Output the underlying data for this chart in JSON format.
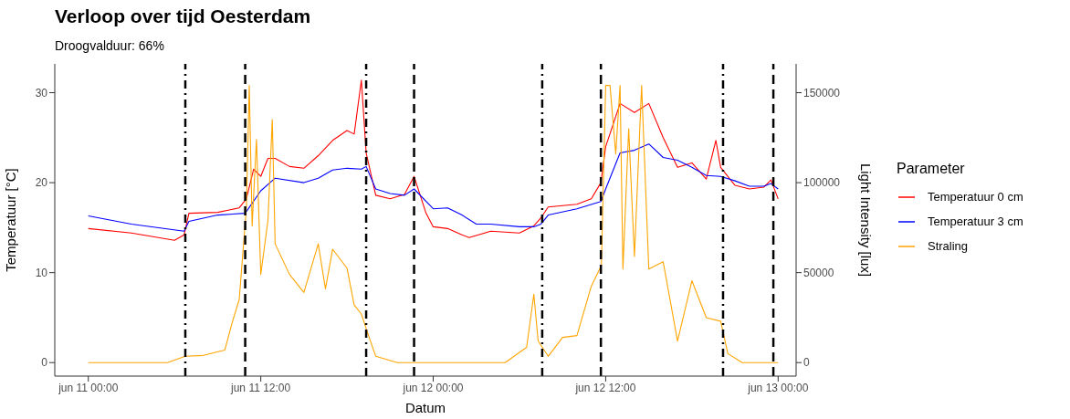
{
  "chart_data": {
    "type": "line",
    "title": "Verloop over tijd Oesterdam",
    "subtitle": "Droogvalduur: 66%",
    "xlabel": "Datum",
    "ylabel": "Temperatuur [°C]",
    "y2label": "Light Intensity [lux]",
    "legend_title": "Parameter",
    "legend": "right",
    "grid": false,
    "xlim": [
      "--06-10T21:40",
      "--06-13T01:15"
    ],
    "xticks": [
      {
        "value": "--06-11T00:00",
        "label": "jun 11 00:00"
      },
      {
        "value": "--06-11T12:00",
        "label": "jun 11 12:00"
      },
      {
        "value": "--06-12T00:00",
        "label": "jun 12 00:00"
      },
      {
        "value": "--06-12T12:00",
        "label": "jun 12 12:00"
      },
      {
        "value": "--06-13T00:00",
        "label": "jun 13 00:00"
      }
    ],
    "ylim": [
      -1.5,
      33.2
    ],
    "yticks": [
      0,
      10,
      20,
      30
    ],
    "y2lim": [
      -7500,
      166000
    ],
    "y2ticks": [
      0,
      50000,
      100000,
      150000
    ],
    "series": [
      {
        "name": "Temperatuur 0 cm",
        "color": "#ff0000",
        "x": [
          "--06-11T00:00",
          "--06-11T03:00",
          "--06-11T06:00",
          "--06-11T06:40",
          "--06-11T07:00",
          "--06-11T09:00",
          "--06-11T10:30",
          "--06-11T11:00",
          "--06-11T11:30",
          "--06-11T12:00",
          "--06-11T12:30",
          "--06-11T13:00",
          "--06-11T14:00",
          "--06-11T15:00",
          "--06-11T16:00",
          "--06-11T17:00",
          "--06-11T18:00",
          "--06-11T18:30",
          "--06-11T19:00",
          "--06-11T19:20",
          "--06-11T20:00",
          "--06-11T21:00",
          "--06-11T22:00",
          "--06-11T22:40",
          "--06-11T23:30",
          "--06-12T00:00",
          "--06-12T01:00",
          "--06-12T02:00",
          "--06-12T02:30",
          "--06-12T04:00",
          "--06-12T06:00",
          "--06-12T07:00",
          "--06-12T07:30",
          "--06-12T08:00",
          "--06-12T10:00",
          "--06-12T11:00",
          "--06-12T11:40",
          "--06-12T12:00",
          "--06-12T13:00",
          "--06-12T14:00",
          "--06-12T15:00",
          "--06-12T16:00",
          "--06-12T17:00",
          "--06-12T18:00",
          "--06-12T19:00",
          "--06-12T19:40",
          "--06-12T20:00",
          "--06-12T21:00",
          "--06-12T22:00",
          "--06-12T23:00",
          "--06-12T23:30",
          "--06-13T00:00"
        ],
        "values": [
          14.9,
          14.4,
          13.6,
          14.2,
          16.6,
          16.7,
          17.2,
          18.2,
          21.5,
          20.7,
          22.7,
          22.7,
          21.8,
          21.6,
          23,
          24.7,
          25.8,
          25.4,
          31.4,
          23.3,
          18.6,
          18.2,
          18.7,
          20.7,
          16.6,
          15.1,
          14.9,
          14.2,
          13.9,
          14.6,
          14.4,
          15.2,
          16.1,
          17.3,
          17.6,
          18.2,
          20,
          24,
          28.8,
          27.8,
          28.8,
          25,
          21.7,
          22.2,
          20.4,
          24.7,
          21.7,
          19.7,
          19.3,
          19.5,
          20.3,
          18.2
        ]
      },
      {
        "name": "Temperatuur 3 cm",
        "color": "#0000ff",
        "x": [
          "--06-11T00:00",
          "--06-11T03:00",
          "--06-11T06:40",
          "--06-11T07:00",
          "--06-11T09:00",
          "--06-11T10:55",
          "--06-11T12:00",
          "--06-11T13:00",
          "--06-11T15:00",
          "--06-11T16:00",
          "--06-11T17:00",
          "--06-11T18:00",
          "--06-11T19:00",
          "--06-11T19:20",
          "--06-11T20:00",
          "--06-11T21:00",
          "--06-11T22:00",
          "--06-11T22:40",
          "--06-12T00:00",
          "--06-12T01:00",
          "--06-12T02:00",
          "--06-12T03:00",
          "--06-12T04:00",
          "--06-12T06:00",
          "--06-12T07:00",
          "--06-12T07:30",
          "--06-12T08:00",
          "--06-12T10:00",
          "--06-12T11:40",
          "--06-12T12:00",
          "--06-12T13:00",
          "--06-12T14:00",
          "--06-12T15:00",
          "--06-12T16:00",
          "--06-12T17:00",
          "--06-12T18:00",
          "--06-12T19:00",
          "--06-12T20:00",
          "--06-12T21:00",
          "--06-12T22:00",
          "--06-12T23:00",
          "--06-12T23:30",
          "--06-13T00:00"
        ],
        "values": [
          16.3,
          15.4,
          14.6,
          15.7,
          16.4,
          16.6,
          19.1,
          20.5,
          20,
          20.5,
          21.4,
          21.6,
          21.5,
          21.8,
          19.3,
          18.8,
          18.6,
          19.3,
          17.1,
          17.2,
          16.4,
          15.4,
          15.4,
          15.1,
          15.1,
          15.4,
          16.4,
          17.1,
          17.9,
          19.3,
          23.3,
          23.6,
          24.3,
          22.8,
          22.5,
          21.7,
          20.8,
          20.7,
          20.2,
          19.6,
          19.6,
          19.9,
          19.3
        ]
      },
      {
        "name": "Straling",
        "color": "#ffa500",
        "axis": "y2",
        "x": [
          "--06-11T00:00",
          "--06-11T05:30",
          "--06-11T06:45",
          "--06-11T08:00",
          "--06-11T09:30",
          "--06-11T10:00",
          "--06-11T10:30",
          "--06-11T11:00",
          "--06-11T11:12",
          "--06-11T11:24",
          "--06-11T11:42",
          "--06-11T12:00",
          "--06-11T12:30",
          "--06-11T12:48",
          "--06-11T13:00",
          "--06-11T14:00",
          "--06-11T15:00",
          "--06-11T16:00",
          "--06-11T16:30",
          "--06-11T17:00",
          "--06-11T18:00",
          "--06-11T18:30",
          "--06-11T19:00",
          "--06-11T19:30",
          "--06-11T20:00",
          "--06-11T21:30",
          "--06-12T05:00",
          "--06-12T06:30",
          "--06-12T07:00",
          "--06-12T07:18",
          "--06-12T08:00",
          "--06-12T09:00",
          "--06-12T10:00",
          "--06-12T11:00",
          "--06-12T11:42",
          "--06-12T12:00",
          "--06-12T12:18",
          "--06-12T12:42",
          "--06-12T13:00",
          "--06-12T13:12",
          "--06-12T13:36",
          "--06-12T14:00",
          "--06-12T14:30",
          "--06-12T15:00",
          "--06-12T16:00",
          "--06-12T17:00",
          "--06-12T18:00",
          "--06-12T19:00",
          "--06-12T20:00",
          "--06-12T20:30",
          "--06-12T21:30",
          "--06-13T00:00"
        ],
        "values": [
          0,
          0,
          3500,
          4000,
          7000,
          22000,
          35000,
          86000,
          154000,
          76000,
          124000,
          49000,
          79000,
          135000,
          66000,
          49000,
          39000,
          66000,
          41000,
          63000,
          52500,
          32000,
          27000,
          15000,
          3500,
          0,
          0,
          8500,
          38000,
          12000,
          3500,
          14000,
          15000,
          42500,
          54000,
          154000,
          154000,
          116000,
          154000,
          52000,
          130000,
          59000,
          154000,
          52000,
          56000,
          12000,
          45500,
          25000,
          23000,
          5000,
          0,
          0
        ]
      }
    ],
    "ref_lines": [
      {
        "axis": "x",
        "value": "--06-11T06:45",
        "line_style": "dashdot",
        "color": "#000000"
      },
      {
        "axis": "x",
        "value": "--06-11T10:55",
        "line_style": "dashed",
        "color": "#000000"
      },
      {
        "axis": "x",
        "value": "--06-11T19:20",
        "line_style": "dashdot",
        "color": "#000000"
      },
      {
        "axis": "x",
        "value": "--06-11T22:40",
        "line_style": "dashed",
        "color": "#000000"
      },
      {
        "axis": "x",
        "value": "--06-12T07:35",
        "line_style": "dashdot",
        "color": "#000000"
      },
      {
        "axis": "x",
        "value": "--06-12T11:40",
        "line_style": "dashed",
        "color": "#000000"
      },
      {
        "axis": "x",
        "value": "--06-12T20:10",
        "line_style": "dashdot",
        "color": "#000000"
      },
      {
        "axis": "x",
        "value": "--06-12T23:40",
        "line_style": "dashed",
        "color": "#000000"
      }
    ]
  }
}
